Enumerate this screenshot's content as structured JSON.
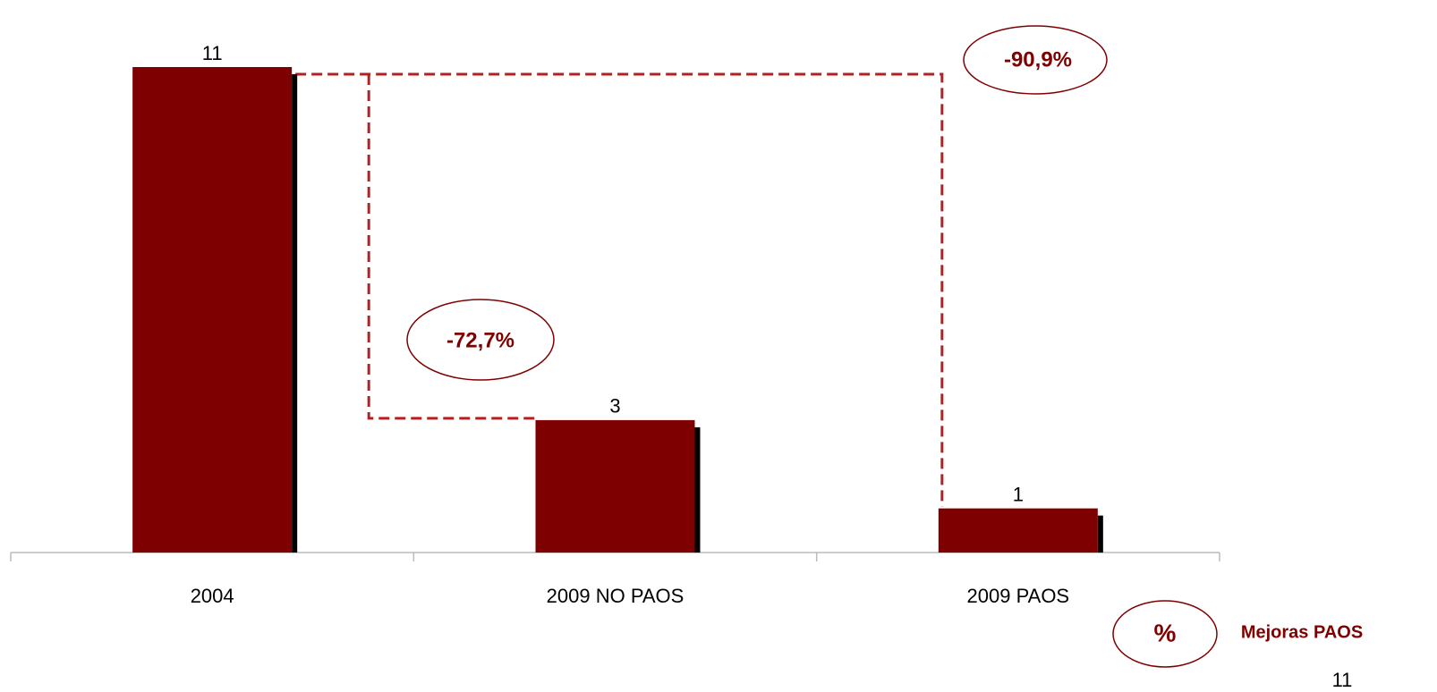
{
  "chart_data": {
    "type": "bar",
    "categories": [
      "2004",
      "2009 NO PAOS",
      "2009 PAOS"
    ],
    "values": [
      11,
      3,
      1
    ],
    "color": "#7f0000",
    "ylim": [
      0,
      11
    ],
    "grid": false,
    "annotations": [
      "-72,7%",
      "-90,9%"
    ],
    "legend_symbol": "%",
    "legend_label": "Mejoras PAOS",
    "page_number": "11"
  }
}
